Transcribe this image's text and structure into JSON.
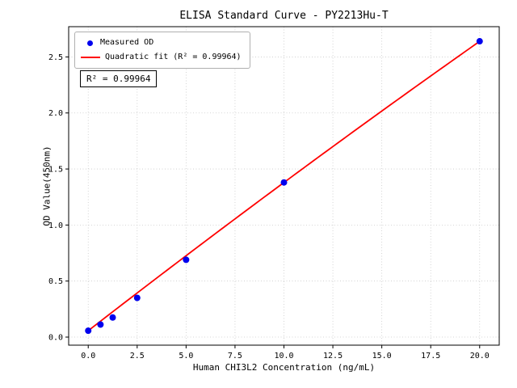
{
  "chart_data": {
    "type": "scatter",
    "title": "ELISA Standard Curve - PY2213Hu-T",
    "xlabel": "Human CHI3L2 Concentration (ng/mL)",
    "ylabel": "OD Value(450nm)",
    "xlim": [
      -1,
      21
    ],
    "ylim": [
      -0.072,
      2.77
    ],
    "xticks": [
      0.0,
      2.5,
      5.0,
      7.5,
      10.0,
      12.5,
      15.0,
      17.5,
      20.0
    ],
    "xtick_labels": [
      "0.0",
      "2.5",
      "5.0",
      "7.5",
      "10.0",
      "12.5",
      "15.0",
      "17.5",
      "20.0"
    ],
    "yticks": [
      0.0,
      0.5,
      1.0,
      1.5,
      2.0,
      2.5
    ],
    "ytick_labels": [
      "0.0",
      "0.5",
      "1.0",
      "1.5",
      "2.0",
      "2.5"
    ],
    "grid": true,
    "series": [
      {
        "name": "Measured OD",
        "type": "scatter",
        "color": "#0000ee",
        "points": [
          [
            0,
            0.057
          ],
          [
            0.625,
            0.112
          ],
          [
            1.25,
            0.175
          ],
          [
            2.5,
            0.35
          ],
          [
            5,
            0.69
          ],
          [
            10,
            1.38
          ],
          [
            20,
            2.64
          ]
        ]
      },
      {
        "name": "Quadratic fit (R² = 0.99964)",
        "type": "line",
        "color": "#ff0000",
        "fit_coefficients": {
          "a": 0.057,
          "b": 0.1354,
          "c": -0.000315
        },
        "x_range": [
          0,
          20
        ]
      }
    ],
    "legend": {
      "position": "upper-left",
      "entries": [
        "Measured OD",
        "Quadratic fit (R² = 0.99964)"
      ]
    },
    "annotation": "R² = 0.99964"
  }
}
